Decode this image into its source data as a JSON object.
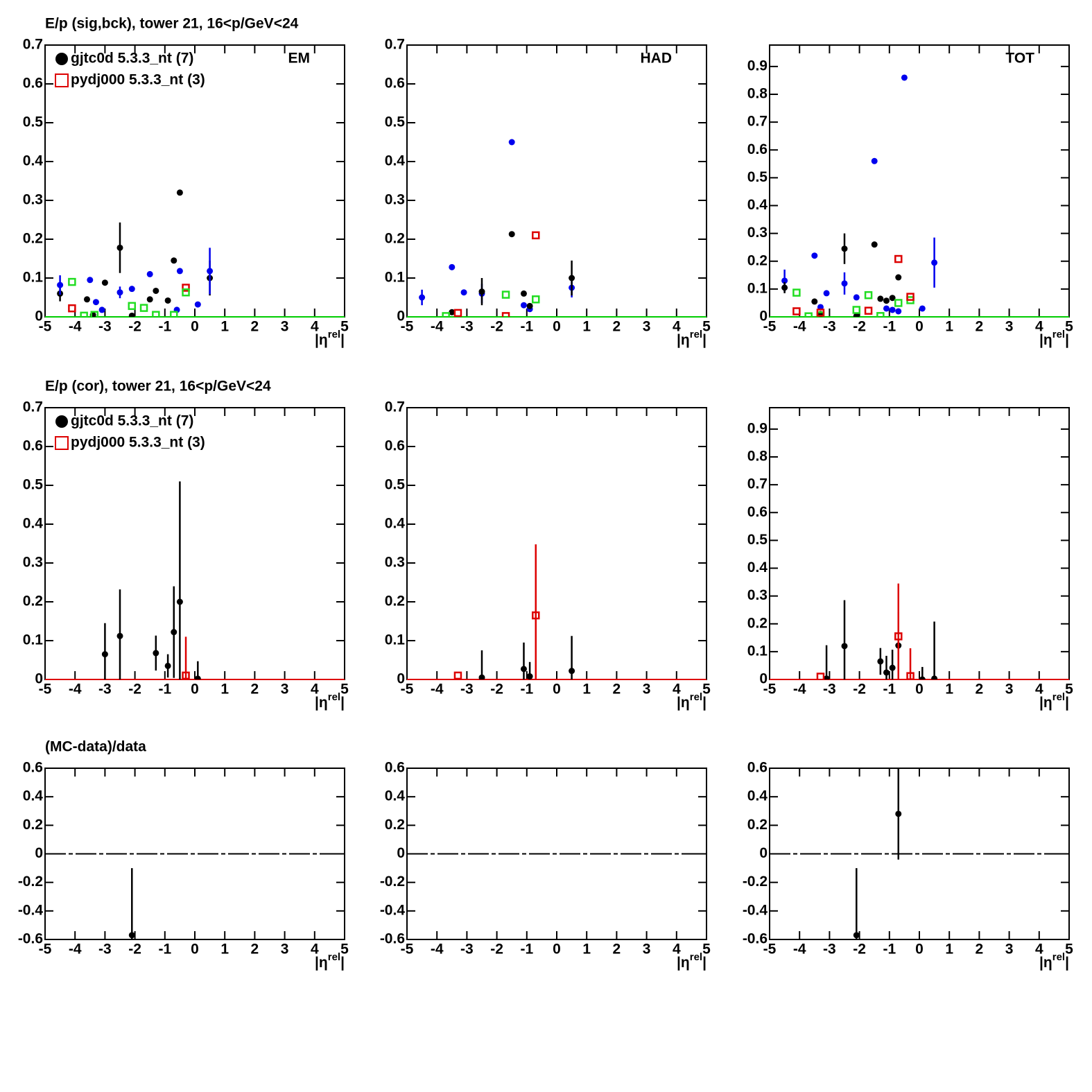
{
  "chart_data": [
    {
      "type": "scatter",
      "title": "E/p (sig,bck), tower 21, 16<p/GeV<24",
      "label": "EM",
      "xlabel": "|η",
      "xlabel_sup": "rel",
      "xlabel_end": "|",
      "xlim": [
        -5,
        5
      ],
      "ylim": [
        0,
        0.7
      ],
      "xticks": [
        -5,
        -4,
        -3,
        -2,
        -1,
        0,
        1,
        2,
        3,
        4,
        5
      ],
      "yticks": [
        0,
        0.1,
        0.2,
        0.3,
        0.4,
        0.5,
        0.6,
        0.7
      ],
      "zero_line": "#00cc00",
      "legend": "top-left",
      "series": [
        {
          "name": "gjtc0d 5.3.3_nt (7)",
          "color": "#000000",
          "marker": "circle",
          "x": [
            -4.5,
            -3.6,
            -3.4,
            -3.0,
            -2.5,
            -2.1,
            -1.5,
            -1.3,
            -0.9,
            -0.7,
            -0.5,
            0.5
          ],
          "values": [
            0.06,
            0.045,
            0.005,
            0.088,
            0.178,
            0.003,
            0.045,
            0.067,
            0.042,
            0.145,
            0.32,
            0.1
          ],
          "errors": [
            0.02,
            null,
            null,
            null,
            0.065,
            null,
            null,
            null,
            null,
            null,
            null,
            0.045
          ]
        },
        {
          "name": "pydj000 5.3.3_nt (3)",
          "color": "#dd0000",
          "marker": "square",
          "x": [
            -4.1,
            -0.3
          ],
          "values": [
            0.022,
            0.075
          ]
        },
        {
          "color": "#0000ee",
          "marker": "circle",
          "x": [
            -4.5,
            -3.5,
            -3.3,
            -3.1,
            -2.5,
            -2.1,
            -1.5,
            -0.6,
            -0.5,
            0.1,
            0.5
          ],
          "values": [
            0.082,
            0.095,
            0.038,
            0.018,
            0.063,
            0.072,
            0.11,
            0.018,
            0.118,
            0.032,
            0.118
          ],
          "errors": [
            0.025,
            null,
            null,
            null,
            0.015,
            null,
            null,
            null,
            null,
            null,
            0.06
          ]
        },
        {
          "color": "#22dd22",
          "marker": "square",
          "x": [
            -4.1,
            -3.7,
            -3.35,
            -2.1,
            -1.7,
            -1.3,
            -0.7,
            -0.3
          ],
          "values": [
            0.09,
            0.003,
            0.005,
            0.028,
            0.023,
            0.005,
            0.005,
            0.063
          ]
        }
      ]
    },
    {
      "type": "scatter",
      "label": "HAD",
      "xlabel": "|η",
      "xlabel_sup": "rel",
      "xlabel_end": "|",
      "xlim": [
        -5,
        5
      ],
      "ylim": [
        0,
        0.7
      ],
      "xticks": [
        -5,
        -4,
        -3,
        -2,
        -1,
        0,
        1,
        2,
        3,
        4,
        5
      ],
      "yticks": [
        0,
        0.1,
        0.2,
        0.3,
        0.4,
        0.5,
        0.6,
        0.7
      ],
      "zero_line": "#00cc00",
      "series": [
        {
          "color": "#0000ee",
          "marker": "circle",
          "x": [
            -4.5,
            -3.5,
            -3.1,
            -2.5,
            -1.5,
            -1.1,
            -0.9,
            0.5
          ],
          "values": [
            0.05,
            0.128,
            0.063,
            0.06,
            0.45,
            0.03,
            0.02,
            0.075
          ],
          "errors": [
            0.02,
            null,
            null,
            0.025,
            null,
            null,
            null,
            0.025
          ]
        },
        {
          "color": "#000000",
          "marker": "circle",
          "x": [
            -3.5,
            -2.5,
            -1.5,
            -1.1,
            -0.9,
            0.5
          ],
          "values": [
            0.012,
            0.065,
            0.213,
            0.06,
            0.028,
            0.1
          ],
          "errors": [
            null,
            0.035,
            null,
            null,
            null,
            0.045
          ]
        },
        {
          "color": "#22dd22",
          "marker": "square",
          "x": [
            -3.7,
            -1.7,
            -0.7
          ],
          "values": [
            0.002,
            0.057,
            0.045
          ]
        },
        {
          "color": "#dd0000",
          "marker": "square",
          "x": [
            -3.3,
            -1.7,
            -0.7
          ],
          "values": [
            0.01,
            0.002,
            0.21
          ]
        }
      ]
    },
    {
      "type": "scatter",
      "label": "TOT",
      "xlabel": "|η",
      "xlabel_sup": "rel",
      "xlabel_end": "|",
      "xlim": [
        -5,
        5
      ],
      "ylim": [
        0,
        0.977
      ],
      "xticks": [
        -5,
        -4,
        -3,
        -2,
        -1,
        0,
        1,
        2,
        3,
        4,
        5
      ],
      "yticks": [
        0,
        0.1,
        0.2,
        0.3,
        0.4,
        0.5,
        0.6,
        0.7,
        0.8,
        0.9
      ],
      "zero_line": "#00cc00",
      "series": [
        {
          "color": "#0000ee",
          "marker": "circle",
          "x": [
            -4.5,
            -3.5,
            -3.3,
            -3.1,
            -2.5,
            -2.1,
            -1.5,
            -1.1,
            -0.9,
            -0.7,
            -0.5,
            0.1,
            0.5
          ],
          "values": [
            0.13,
            0.22,
            0.035,
            0.085,
            0.12,
            0.07,
            0.56,
            0.03,
            0.025,
            0.02,
            0.86,
            0.03,
            0.195
          ],
          "errors": [
            0.04,
            null,
            null,
            null,
            0.04,
            null,
            null,
            null,
            null,
            null,
            null,
            null,
            0.09
          ]
        },
        {
          "color": "#000000",
          "marker": "circle",
          "x": [
            -4.5,
            -3.5,
            -3.3,
            -2.5,
            -2.1,
            -1.5,
            -1.3,
            -1.1,
            -0.9,
            -0.7
          ],
          "values": [
            0.105,
            0.055,
            0.01,
            0.245,
            0.003,
            0.26,
            0.065,
            0.058,
            0.068,
            0.142
          ],
          "errors": [
            0.02,
            null,
            null,
            0.055,
            null,
            null,
            null,
            null,
            null,
            null
          ]
        },
        {
          "color": "#22dd22",
          "marker": "square",
          "x": [
            -4.1,
            -3.7,
            -3.3,
            -2.1,
            -1.7,
            -1.3,
            -0.7,
            -0.3
          ],
          "values": [
            0.087,
            0.002,
            0.005,
            0.025,
            0.078,
            0.003,
            0.05,
            0.06
          ]
        },
        {
          "color": "#dd0000",
          "marker": "square",
          "x": [
            -4.1,
            -3.3,
            -1.7,
            -0.7,
            -0.3
          ],
          "values": [
            0.02,
            0.015,
            0.022,
            0.208,
            0.072
          ]
        }
      ]
    },
    {
      "type": "scatter",
      "title": "E/p (cor), tower 21, 16<p/GeV<24",
      "xlabel": "|η",
      "xlabel_sup": "rel",
      "xlabel_end": "|",
      "xlim": [
        -5,
        5
      ],
      "ylim": [
        0,
        0.7
      ],
      "xticks": [
        -5,
        -4,
        -3,
        -2,
        -1,
        0,
        1,
        2,
        3,
        4,
        5
      ],
      "yticks": [
        0,
        0.1,
        0.2,
        0.3,
        0.4,
        0.5,
        0.6,
        0.7
      ],
      "zero_line": "#dd0000",
      "legend": "top-left",
      "series": [
        {
          "name": "gjtc0d 5.3.3_nt (7)",
          "color": "#000000",
          "marker": "circle",
          "x": [
            -3.0,
            -2.5,
            -1.3,
            -0.9,
            -0.7,
            -0.5,
            0.1
          ],
          "values": [
            0.065,
            0.112,
            0.068,
            0.035,
            0.122,
            0.2,
            0.002
          ],
          "errors": [
            0.08,
            0.12,
            0.045,
            0.03,
            0.118,
            0.31,
            0.045
          ]
        },
        {
          "name": "pydj000 5.3.3_nt (3)",
          "color": "#dd0000",
          "marker": "square",
          "x": [
            -0.3
          ],
          "values": [
            0.01
          ],
          "errors": [
            0.1
          ]
        }
      ]
    },
    {
      "type": "scatter",
      "xlabel": "|η",
      "xlabel_sup": "rel",
      "xlabel_end": "|",
      "xlim": [
        -5,
        5
      ],
      "ylim": [
        0,
        0.7
      ],
      "xticks": [
        -5,
        -4,
        -3,
        -2,
        -1,
        0,
        1,
        2,
        3,
        4,
        5
      ],
      "yticks": [
        0,
        0.1,
        0.2,
        0.3,
        0.4,
        0.5,
        0.6,
        0.7
      ],
      "zero_line": "#dd0000",
      "series": [
        {
          "color": "#000000",
          "marker": "circle",
          "x": [
            -2.5,
            -1.1,
            -0.9,
            0.5
          ],
          "values": [
            0.005,
            0.027,
            0.008,
            0.022
          ],
          "errors": [
            0.07,
            0.068,
            0.037,
            0.09
          ]
        },
        {
          "color": "#dd0000",
          "marker": "square",
          "x": [
            -3.3,
            -0.7
          ],
          "values": [
            0.01,
            0.165
          ],
          "errors": [
            null,
            0.183
          ]
        }
      ]
    },
    {
      "type": "scatter",
      "xlabel": "|η",
      "xlabel_sup": "rel",
      "xlabel_end": "|",
      "xlim": [
        -5,
        5
      ],
      "ylim": [
        0,
        0.977
      ],
      "xticks": [
        -5,
        -4,
        -3,
        -2,
        -1,
        0,
        1,
        2,
        3,
        4,
        5
      ],
      "yticks": [
        0,
        0.1,
        0.2,
        0.3,
        0.4,
        0.5,
        0.6,
        0.7,
        0.8,
        0.9
      ],
      "zero_line": "#dd0000",
      "series": [
        {
          "color": "#000000",
          "marker": "circle",
          "x": [
            -3.1,
            -2.5,
            -1.3,
            -1.1,
            -0.9,
            -0.7,
            0.1,
            0.5
          ],
          "values": [
            0.003,
            0.12,
            0.065,
            0.025,
            0.042,
            0.122,
            0.0,
            0.003
          ],
          "errors": [
            0.12,
            0.165,
            0.048,
            0.06,
            0.065,
            0.12,
            0.045,
            0.205
          ]
        },
        {
          "color": "#dd0000",
          "marker": "square",
          "x": [
            -3.3,
            -0.7,
            -0.3
          ],
          "values": [
            0.01,
            0.155,
            0.012
          ],
          "errors": [
            null,
            0.19,
            0.1
          ]
        }
      ]
    },
    {
      "type": "scatter",
      "title": "(MC-data)/data",
      "xlabel": "|η",
      "xlabel_sup": "rel",
      "xlabel_end": "|",
      "xlim": [
        -5,
        5
      ],
      "ylim": [
        -0.6,
        0.6
      ],
      "xticks": [
        -5,
        -4,
        -3,
        -2,
        -1,
        0,
        1,
        2,
        3,
        4,
        5
      ],
      "yticks": [
        -0.6,
        -0.4,
        -0.2,
        0,
        0.2,
        0.4,
        0.6
      ],
      "zero_line": "#000000",
      "zero_dash": true,
      "series": [
        {
          "color": "#000000",
          "marker": "circle",
          "x": [
            -2.1
          ],
          "values": [
            -0.57
          ],
          "errors": [
            0.47
          ]
        }
      ]
    },
    {
      "type": "scatter",
      "xlabel": "|η",
      "xlabel_sup": "rel",
      "xlabel_end": "|",
      "xlim": [
        -5,
        5
      ],
      "ylim": [
        -0.6,
        0.6
      ],
      "xticks": [
        -5,
        -4,
        -3,
        -2,
        -1,
        0,
        1,
        2,
        3,
        4,
        5
      ],
      "yticks": [
        -0.6,
        -0.4,
        -0.2,
        0,
        0.2,
        0.4,
        0.6
      ],
      "zero_line": "#000000",
      "zero_dash": true,
      "series": []
    },
    {
      "type": "scatter",
      "xlabel": "|η",
      "xlabel_sup": "rel",
      "xlabel_end": "|",
      "xlim": [
        -5,
        5
      ],
      "ylim": [
        -0.6,
        0.6
      ],
      "xticks": [
        -5,
        -4,
        -3,
        -2,
        -1,
        0,
        1,
        2,
        3,
        4,
        5
      ],
      "yticks": [
        -0.6,
        -0.4,
        -0.2,
        0,
        0.2,
        0.4,
        0.6
      ],
      "zero_line": "#000000",
      "zero_dash": true,
      "series": [
        {
          "color": "#000000",
          "marker": "circle",
          "x": [
            -2.1,
            -0.7
          ],
          "values": [
            -0.57,
            0.28
          ],
          "errors": [
            0.47,
            0.32
          ]
        }
      ]
    }
  ]
}
